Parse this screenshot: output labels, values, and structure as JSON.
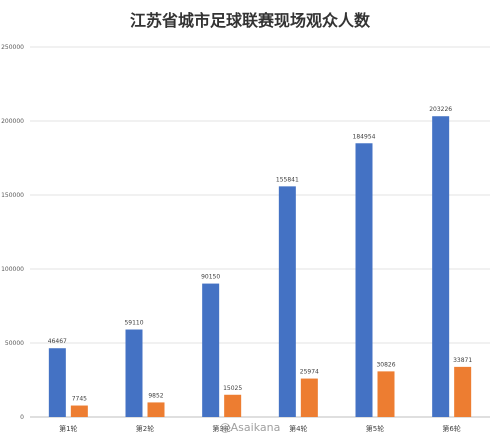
{
  "chart_data": {
    "type": "bar",
    "title": "江苏省城市足球联赛现场观众人数",
    "categories": [
      "第1轮",
      "第2轮",
      "第3轮",
      "第4轮",
      "第5轮",
      "第6轮"
    ],
    "series": [
      {
        "values": [
          46467,
          59110,
          90150,
          155841,
          184954,
          203226
        ],
        "color": "#4472C4"
      },
      {
        "values": [
          7745,
          9852,
          15025,
          25974,
          30826,
          33871
        ],
        "color": "#ED7D31"
      }
    ],
    "ylim": [
      0,
      250000
    ],
    "yticks": [
      0,
      50000,
      100000,
      150000,
      200000,
      250000
    ],
    "grid": true,
    "legend": "none"
  },
  "watermark": "@Asaikana"
}
